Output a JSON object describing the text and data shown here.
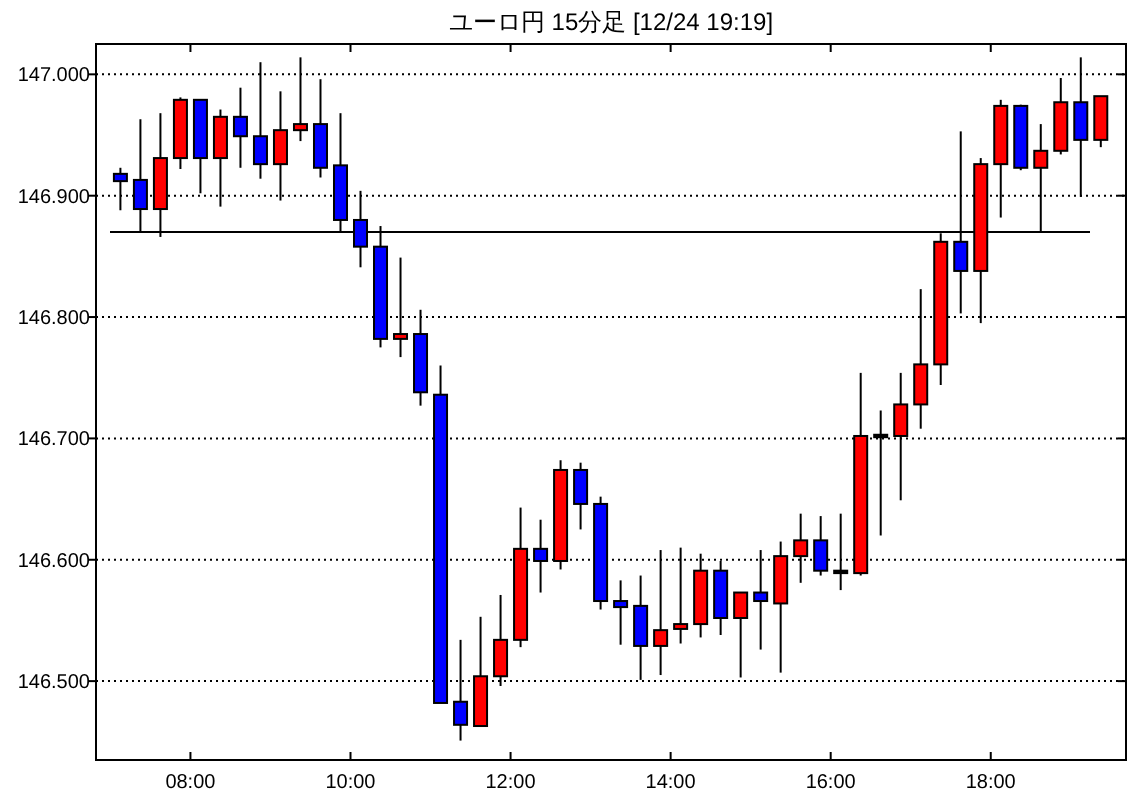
{
  "chart_data": {
    "type": "candlestick",
    "title": "ユーロ円 15分足 [12/24 19:19]",
    "x": [
      7.125,
      7.375,
      7.625,
      7.875,
      8.125,
      8.375,
      8.625,
      8.875,
      9.125,
      9.375,
      9.625,
      9.875,
      10.125,
      10.375,
      10.625,
      10.875,
      11.125,
      11.375,
      11.625,
      11.875,
      12.125,
      12.375,
      12.625,
      12.875,
      13.125,
      13.375,
      13.625,
      13.875,
      14.125,
      14.375,
      14.625,
      14.875,
      15.125,
      15.375,
      15.625,
      15.875,
      16.125,
      16.375,
      16.625,
      16.875,
      17.125,
      17.375,
      17.625,
      17.875,
      18.125,
      18.375,
      18.625,
      18.875,
      19.125,
      19.375
    ],
    "ohlc": [
      [
        146.918,
        146.923,
        146.888,
        146.912
      ],
      [
        146.913,
        146.963,
        146.87,
        146.889
      ],
      [
        146.889,
        146.968,
        146.866,
        146.931
      ],
      [
        146.931,
        146.981,
        146.922,
        146.979
      ],
      [
        146.979,
        146.979,
        146.902,
        146.931
      ],
      [
        146.931,
        146.971,
        146.891,
        146.965
      ],
      [
        146.965,
        146.989,
        146.923,
        146.949
      ],
      [
        146.949,
        147.01,
        146.914,
        146.926
      ],
      [
        146.926,
        146.986,
        146.896,
        146.954
      ],
      [
        146.954,
        147.014,
        146.945,
        146.959
      ],
      [
        146.959,
        146.996,
        146.915,
        146.923
      ],
      [
        146.925,
        146.968,
        146.87,
        146.88
      ],
      [
        146.88,
        146.904,
        146.841,
        146.858
      ],
      [
        146.858,
        146.875,
        146.775,
        146.782
      ],
      [
        146.782,
        146.849,
        146.767,
        146.786
      ],
      [
        146.786,
        146.806,
        146.727,
        146.738
      ],
      [
        146.736,
        146.76,
        146.482,
        146.482
      ],
      [
        146.483,
        146.534,
        146.451,
        146.464
      ],
      [
        146.463,
        146.553,
        146.463,
        146.504
      ],
      [
        146.504,
        146.571,
        146.496,
        146.534
      ],
      [
        146.534,
        146.643,
        146.528,
        146.609
      ],
      [
        146.609,
        146.633,
        146.573,
        146.599
      ],
      [
        146.599,
        146.682,
        146.592,
        146.674
      ],
      [
        146.674,
        146.68,
        146.625,
        146.646
      ],
      [
        146.646,
        146.652,
        146.559,
        146.566
      ],
      [
        146.566,
        146.583,
        146.53,
        146.561
      ],
      [
        146.562,
        146.587,
        146.501,
        146.529
      ],
      [
        146.529,
        146.608,
        146.505,
        146.542
      ],
      [
        146.543,
        146.61,
        146.531,
        146.547
      ],
      [
        146.547,
        146.605,
        146.536,
        146.591
      ],
      [
        146.591,
        146.599,
        146.538,
        146.552
      ],
      [
        146.552,
        146.573,
        146.503,
        146.573
      ],
      [
        146.573,
        146.608,
        146.526,
        146.566
      ],
      [
        146.564,
        146.615,
        146.507,
        146.603
      ],
      [
        146.603,
        146.638,
        146.581,
        146.616
      ],
      [
        146.616,
        146.636,
        146.587,
        146.591
      ],
      [
        146.591,
        146.638,
        146.575,
        146.589
      ],
      [
        146.589,
        146.754,
        146.587,
        146.702
      ],
      [
        146.703,
        146.723,
        146.62,
        146.701
      ],
      [
        146.702,
        146.754,
        146.649,
        146.728
      ],
      [
        146.728,
        146.823,
        146.708,
        146.761
      ],
      [
        146.761,
        146.869,
        146.744,
        146.862
      ],
      [
        146.862,
        146.953,
        146.803,
        146.838
      ],
      [
        146.838,
        146.931,
        146.795,
        146.926
      ],
      [
        146.926,
        146.979,
        146.882,
        146.974
      ],
      [
        146.974,
        146.975,
        146.921,
        146.923
      ],
      [
        146.923,
        146.959,
        146.87,
        146.937
      ],
      [
        146.937,
        146.997,
        146.934,
        146.977
      ],
      [
        146.977,
        147.014,
        146.899,
        146.946
      ],
      [
        146.946,
        146.982,
        146.94,
        146.982
      ]
    ],
    "colors": [
      "#0000ff",
      "#0000ff",
      "#ff0000",
      "#ff0000",
      "#0000ff",
      "#ff0000",
      "#0000ff",
      "#0000ff",
      "#ff0000",
      "#ff0000",
      "#0000ff",
      "#0000ff",
      "#0000ff",
      "#0000ff",
      "#ff0000",
      "#0000ff",
      "#0000ff",
      "#0000ff",
      "#ff0000",
      "#ff0000",
      "#ff0000",
      "#0000ff",
      "#ff0000",
      "#0000ff",
      "#0000ff",
      "#0000ff",
      "#0000ff",
      "#ff0000",
      "#ff0000",
      "#ff0000",
      "#0000ff",
      "#ff0000",
      "#0000ff",
      "#ff0000",
      "#ff0000",
      "#0000ff",
      "#000000",
      "#ff0000",
      "#000000",
      "#ff0000",
      "#ff0000",
      "#ff0000",
      "#0000ff",
      "#ff0000",
      "#ff0000",
      "#0000ff",
      "#ff0000",
      "#ff0000",
      "#0000ff",
      "#ff0000"
    ],
    "xlim": [
      6.82,
      19.69
    ],
    "xticks": [
      {
        "value": 8,
        "label": "08:00"
      },
      {
        "value": 10,
        "label": "10:00"
      },
      {
        "value": 12,
        "label": "12:00"
      },
      {
        "value": 14,
        "label": "14:00"
      },
      {
        "value": 16,
        "label": "16:00"
      },
      {
        "value": 18,
        "label": "18:00"
      }
    ],
    "ylim": [
      146.435,
      147.025
    ],
    "yticks": [
      {
        "value": 146.5,
        "label": "146.500"
      },
      {
        "value": 146.6,
        "label": "146.600"
      },
      {
        "value": 146.7,
        "label": "146.700"
      },
      {
        "value": 146.8,
        "label": "146.800"
      },
      {
        "value": 146.9,
        "label": "146.900"
      },
      {
        "value": 147,
        "label": "147.000"
      }
    ],
    "grid": "y",
    "ref_lines": [
      {
        "axis": "y",
        "value": 146.87,
        "color": "#000000"
      }
    ]
  }
}
